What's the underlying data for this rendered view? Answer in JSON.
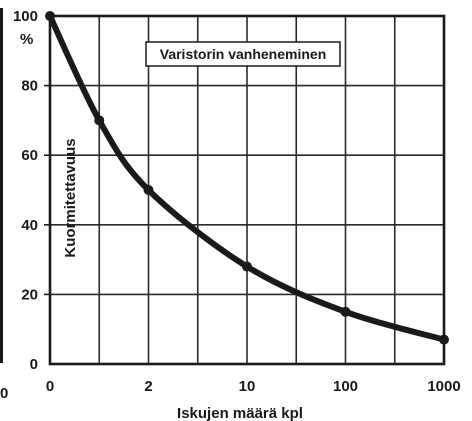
{
  "chart_data": {
    "type": "line",
    "title": "Varistorin vanheneminen",
    "xlabel": "Iskujen määrä kpl",
    "ylabel": "Kuormitettavuus",
    "yunit": "%",
    "x_ticks": [
      {
        "label": "0",
        "pos": 0
      },
      {
        "label": "2",
        "pos": 2
      },
      {
        "label": "10",
        "pos": 4
      },
      {
        "label": "100",
        "pos": 6
      },
      {
        "label": "1000",
        "pos": 8
      }
    ],
    "x_range": [
      0,
      8
    ],
    "y_ticks": [
      "0",
      "20",
      "40",
      "60",
      "80",
      "100"
    ],
    "ylim": [
      0,
      100
    ],
    "grid": true,
    "series": [
      {
        "points": [
          {
            "x": 0,
            "y": 100
          },
          {
            "x": 1,
            "y": 70
          },
          {
            "x": 2,
            "y": 50
          },
          {
            "x": 4,
            "y": 28
          },
          {
            "x": 6,
            "y": 15
          },
          {
            "x": 8,
            "y": 7
          }
        ]
      }
    ],
    "left_edge_labels": [
      "0"
    ],
    "colors": {
      "line": "#1a1a1a",
      "grid": "#2a2a2a",
      "background": "#ffffff"
    }
  }
}
